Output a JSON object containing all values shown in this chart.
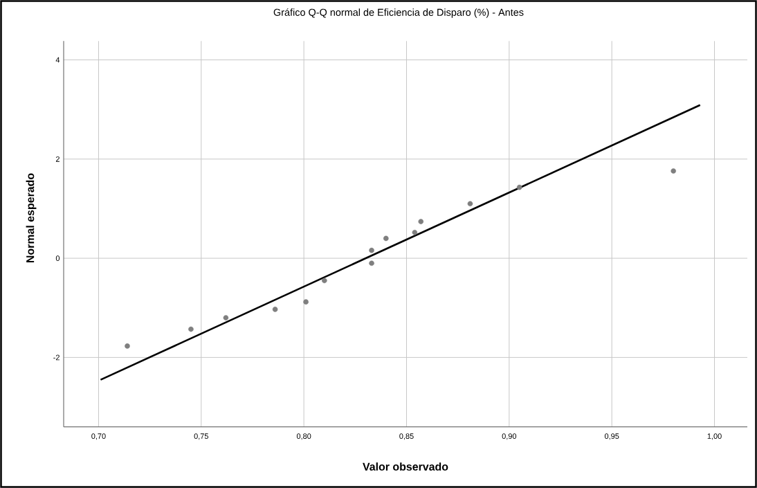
{
  "chart_data": {
    "type": "scatter",
    "title": "Gráfico Q-Q normal de Eficiencia de Disparo (%) - Antes",
    "xlabel": "Valor observado",
    "ylabel": "Normal esperado",
    "xlim": [
      0.683,
      1.016
    ],
    "ylim": [
      -3.4,
      4.38
    ],
    "xticks": [
      {
        "value": 0.7,
        "label": "0,70"
      },
      {
        "value": 0.75,
        "label": "0,75"
      },
      {
        "value": 0.8,
        "label": "0,80"
      },
      {
        "value": 0.85,
        "label": "0,85"
      },
      {
        "value": 0.9,
        "label": "0,90"
      },
      {
        "value": 0.95,
        "label": "0,95"
      },
      {
        "value": 1.0,
        "label": "1,00"
      }
    ],
    "yticks": [
      -2,
      0,
      2,
      4
    ],
    "grid": true,
    "series": [
      {
        "color": "#7f7f7f",
        "marker": "circle",
        "x": [
          0.714,
          0.745,
          0.762,
          0.786,
          0.801,
          0.81,
          0.833,
          0.833,
          0.84,
          0.854,
          0.857,
          0.881,
          0.905,
          0.98
        ],
        "values": [
          -1.77,
          -1.43,
          -1.2,
          -1.03,
          -0.88,
          -0.45,
          -0.1,
          0.16,
          0.4,
          0.52,
          0.74,
          1.1,
          1.43,
          1.76
        ]
      },
      {
        "type": "line",
        "color": "#000000",
        "marker": "none",
        "line_style": "solid",
        "x": [
          0.701,
          0.993
        ],
        "values": [
          -2.45,
          3.09
        ]
      }
    ]
  }
}
